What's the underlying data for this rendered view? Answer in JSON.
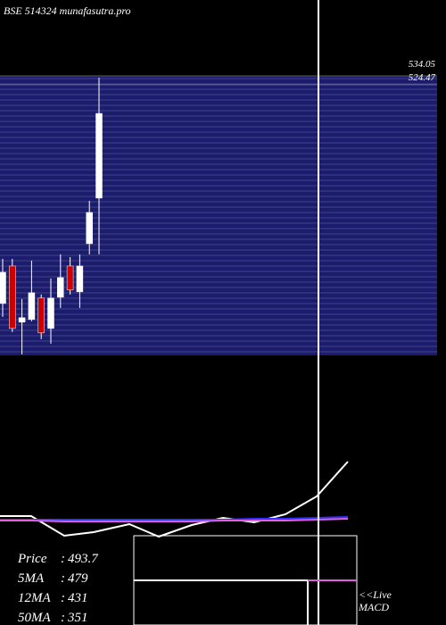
{
  "chart_data": [
    {
      "type": "candlestick",
      "title": "BSE 514324 munafasutra.pro",
      "candles": [
        {
          "open": 289.7,
          "close": 323.2,
          "high": 337.6,
          "low": 275.3
        },
        {
          "open": 329.9,
          "close": 262.9,
          "high": 337.6,
          "low": 259.1
        },
        {
          "open": 269.6,
          "close": 274.4,
          "high": 294.5,
          "low": 235.1
        },
        {
          "open": 272.5,
          "close": 301.2,
          "high": 335.7,
          "low": 270.5
        },
        {
          "open": 295.5,
          "close": 258.1,
          "high": 299.3,
          "low": 251.4
        },
        {
          "open": 262.9,
          "close": 295.5,
          "high": 316.5,
          "low": 246.6
        },
        {
          "open": 296.4,
          "close": 317.5,
          "high": 342.4,
          "low": 284.9
        },
        {
          "open": 329.9,
          "close": 304.1,
          "high": 339.5,
          "low": 299.3
        },
        {
          "open": 302.2,
          "close": 329.9,
          "high": 342.4,
          "low": 284.9
        },
        {
          "open": 353.9,
          "close": 387.4,
          "high": 399.9,
          "low": 342.4
        },
        {
          "open": 402.8,
          "close": 493.7,
          "high": 532.1,
          "low": 342.4
        }
      ],
      "ylim": [
        234,
        534
      ],
      "yticks": [
        534.05,
        524.47
      ],
      "up_color": "#ffffff",
      "down_color": "#cc0000",
      "band_color": "#1c1c6e",
      "stats": [
        {
          "label": "Price",
          "value": "493.7"
        },
        {
          "label": "5MA",
          "value": "479"
        },
        {
          "label": "12MA",
          "value": "431"
        },
        {
          "label": "50MA",
          "value": "351"
        }
      ]
    },
    {
      "type": "line",
      "annotation": "<<Live MACD",
      "x": [
        0,
        35,
        72,
        105,
        145,
        178,
        215,
        250,
        285,
        320,
        355,
        390
      ],
      "xlim": [
        0,
        497
      ],
      "ylim": [
        -100,
        100
      ],
      "series": [
        {
          "color": "#ffffff",
          "values": [
            22,
            22,
            0,
            4,
            13,
            -1,
            12,
            20,
            15,
            24,
            44,
            83
          ]
        },
        {
          "color": "#3030ff",
          "values": [
            18,
            18,
            18,
            18,
            18,
            18,
            18,
            18,
            19,
            19,
            20,
            21
          ]
        },
        {
          "color": "#e060e0",
          "values": [
            17,
            17,
            16,
            16,
            16,
            16,
            16,
            17,
            17,
            17,
            18,
            19
          ]
        }
      ]
    }
  ]
}
